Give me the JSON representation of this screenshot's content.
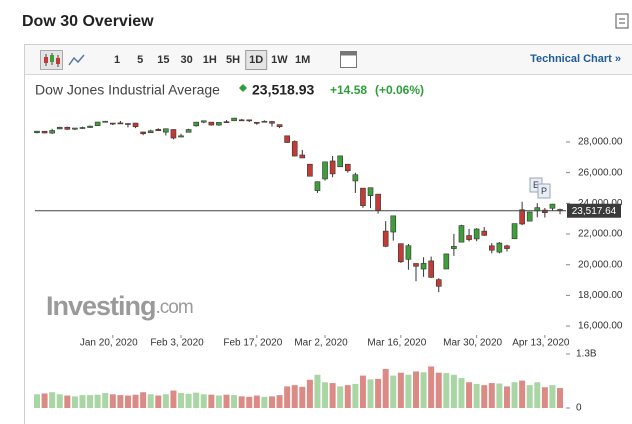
{
  "header": {
    "title": "Dow 30 Overview",
    "link": "Technical Chart »"
  },
  "toolbar": {
    "intervals": [
      "1",
      "5",
      "15",
      "30",
      "1H",
      "5H",
      "1D",
      "1W",
      "1M"
    ],
    "selected": 6
  },
  "quote": {
    "name": "Dow Jones Industrial Average",
    "price": "23,518.93",
    "change": "+14.58",
    "change_pct": "(+0.06%)"
  },
  "chart_data": {
    "type": "candlestick",
    "xticks": [
      {
        "value": 10,
        "label": "Jan 20, 2020"
      },
      {
        "value": 19,
        "label": "Feb 3, 2020"
      },
      {
        "value": 29,
        "label": "Feb 17, 2020"
      },
      {
        "value": 38,
        "label": "Mar 2, 2020"
      },
      {
        "value": 48,
        "label": "Mar 16, 2020"
      },
      {
        "value": 58,
        "label": "Mar 30, 2020"
      },
      {
        "value": 67,
        "label": "Apr 13, 2020"
      }
    ],
    "open": [
      28600,
      28700,
      28580,
      28850,
      28960,
      28830,
      28880,
      28940,
      29060,
      29300,
      29230,
      29240,
      29200,
      29230,
      28650,
      28600,
      28820,
      28640,
      28810,
      28320,
      28630,
      29050,
      29290,
      29290,
      29100,
      29320,
      29380,
      29440,
      29440,
      29280,
      29300,
      29330,
      29130,
      28400,
      28030,
      27150,
      26550,
      24830,
      25590,
      26760,
      26380,
      26550,
      25460,
      24990,
      24500,
      24600,
      22190,
      22130,
      21370,
      20350,
      20080,
      19720,
      20250,
      19030,
      19720,
      21050,
      21470,
      21900,
      21680,
      22190,
      21230,
      20820,
      21230,
      21690,
      23580,
      22840,
      23510,
      23560,
      23680,
      23600
    ],
    "high": [
      28715,
      28705,
      28860,
      28990,
      28990,
      28910,
      29000,
      29070,
      29300,
      29375,
      29240,
      29370,
      29200,
      29240,
      28660,
      28800,
      28890,
      28880,
      28820,
      28530,
      28860,
      29300,
      29380,
      29290,
      29280,
      29420,
      29570,
      29500,
      29440,
      29300,
      29410,
      29370,
      29130,
      28400,
      28100,
      27480,
      26560,
      25430,
      26710,
      27090,
      27100,
      26550,
      25990,
      24990,
      25020,
      24600,
      22840,
      23190,
      21370,
      21350,
      20080,
      20490,
      20530,
      19120,
      20720,
      22010,
      22600,
      22330,
      22380,
      22450,
      21410,
      21470,
      21300,
      22680,
      24100,
      23450,
      24010,
      23700,
      23960,
      23650
    ],
    "low": [
      28550,
      28560,
      28520,
      28830,
      28790,
      28780,
      28850,
      28910,
      29050,
      29280,
      29100,
      29170,
      28950,
      28900,
      28440,
      28590,
      28710,
      28420,
      28170,
      28320,
      28630,
      28990,
      29220,
      29060,
      29050,
      29240,
      29380,
      29380,
      29300,
      29120,
      29300,
      29000,
      28900,
      27950,
      27050,
      26950,
      25760,
      24680,
      25480,
      25700,
      26380,
      26000,
      24680,
      23710,
      23690,
      23330,
      21150,
      21570,
      20120,
      19670,
      18920,
      19210,
      19140,
      18210,
      19720,
      20580,
      21470,
      21520,
      21530,
      21870,
      20740,
      20740,
      20860,
      21690,
      22580,
      22840,
      23090,
      23070,
      23530,
      23290
    ],
    "close": [
      28703,
      28583,
      28745,
      28957,
      28824,
      28907,
      28940,
      29030,
      29297,
      29348,
      29196,
      29186,
      29160,
      28990,
      28535,
      28723,
      28734,
      28859,
      28256,
      28399,
      28808,
      29290,
      29380,
      29103,
      29276,
      29276,
      29551,
      29423,
      29398,
      29232,
      29348,
      29219,
      28992,
      27961,
      27081,
      26957,
      25766,
      25409,
      26703,
      25917,
      27091,
      26121,
      25865,
      23851,
      25018,
      23553,
      21200,
      23185,
      20189,
      21237,
      19899,
      20087,
      19174,
      18592,
      20704,
      21201,
      22552,
      21637,
      22327,
      21917,
      20944,
      21413,
      21053,
      22680,
      22654,
      23434,
      23719,
      23390,
      23949,
      23517.64
    ],
    "ylim": [
      15420,
      29560
    ],
    "yticks": [
      {
        "value": 28000,
        "label": "28,000.00"
      },
      {
        "value": 26000,
        "label": "26,000.00"
      },
      {
        "value": 24000,
        "label": "24,000.00"
      },
      {
        "value": 22000,
        "label": "22,000.00"
      },
      {
        "value": 20000,
        "label": "20,000.00"
      },
      {
        "value": 18000,
        "label": "18,000.00"
      },
      {
        "value": 16000,
        "label": "16,000.00"
      }
    ],
    "price_line": {
      "value": 23517.64,
      "label": "23,517.64"
    },
    "up_color": "#3e9e3a",
    "down_color": "#c23b34",
    "volume": {
      "values": [
        0.33,
        0.35,
        0.38,
        0.33,
        0.3,
        0.28,
        0.31,
        0.31,
        0.32,
        0.36,
        0.33,
        0.31,
        0.3,
        0.32,
        0.38,
        0.33,
        0.3,
        0.33,
        0.42,
        0.36,
        0.34,
        0.37,
        0.33,
        0.32,
        0.3,
        0.32,
        0.31,
        0.28,
        0.27,
        0.3,
        0.27,
        0.28,
        0.31,
        0.52,
        0.55,
        0.51,
        0.68,
        0.8,
        0.62,
        0.6,
        0.52,
        0.55,
        0.58,
        0.78,
        0.69,
        0.7,
        0.94,
        0.78,
        0.85,
        0.8,
        0.88,
        0.86,
        1.0,
        0.85,
        0.84,
        0.8,
        0.72,
        0.62,
        0.58,
        0.55,
        0.6,
        0.59,
        0.52,
        0.62,
        0.66,
        0.55,
        0.62,
        0.5,
        0.55,
        0.48
      ],
      "ylim": [
        0,
        1.3
      ],
      "yticks": [
        {
          "value": 1.3,
          "label": "1.3B"
        },
        0
      ],
      "up_color": "#a9d6a4",
      "down_color": "#dc8a86"
    },
    "markers": [
      "E",
      "P"
    ],
    "watermark": [
      "Investing",
      ".com"
    ]
  }
}
